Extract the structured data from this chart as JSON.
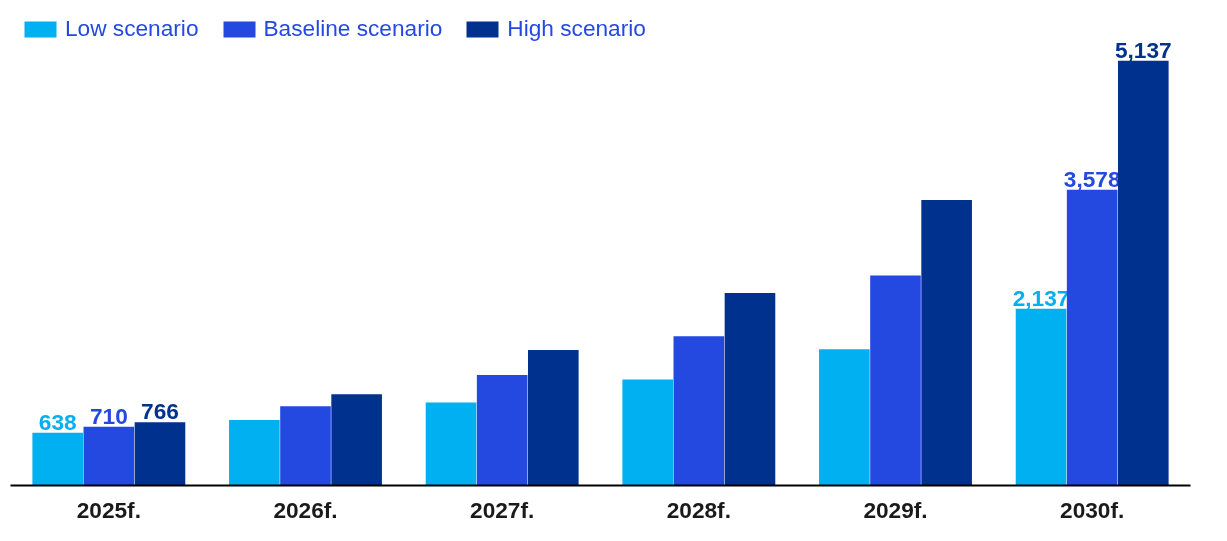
{
  "chart_data": {
    "type": "bar",
    "categories": [
      "2025f.",
      "2026f.",
      "2027f.",
      "2028f.",
      "2029f.",
      "2030f."
    ],
    "series": [
      {
        "name": "Low scenario",
        "color": "#00b0f0",
        "values": [
          638,
          791,
          1003,
          1281,
          1649,
          2137
        ],
        "value_labels": [
          "638",
          null,
          null,
          null,
          null,
          "2,137"
        ]
      },
      {
        "name": "Baseline scenario",
        "color": "#2349e0",
        "values": [
          710,
          958,
          1337,
          1805,
          2541,
          3578
        ],
        "value_labels": [
          "710",
          null,
          null,
          null,
          null,
          "3,578"
        ]
      },
      {
        "name": "High scenario",
        "color": "#00318f",
        "values": [
          766,
          1103,
          1638,
          2329,
          3454,
          5137
        ],
        "value_labels": [
          "766",
          null,
          null,
          null,
          null,
          "5,137"
        ]
      }
    ],
    "legend": "top left"
  }
}
